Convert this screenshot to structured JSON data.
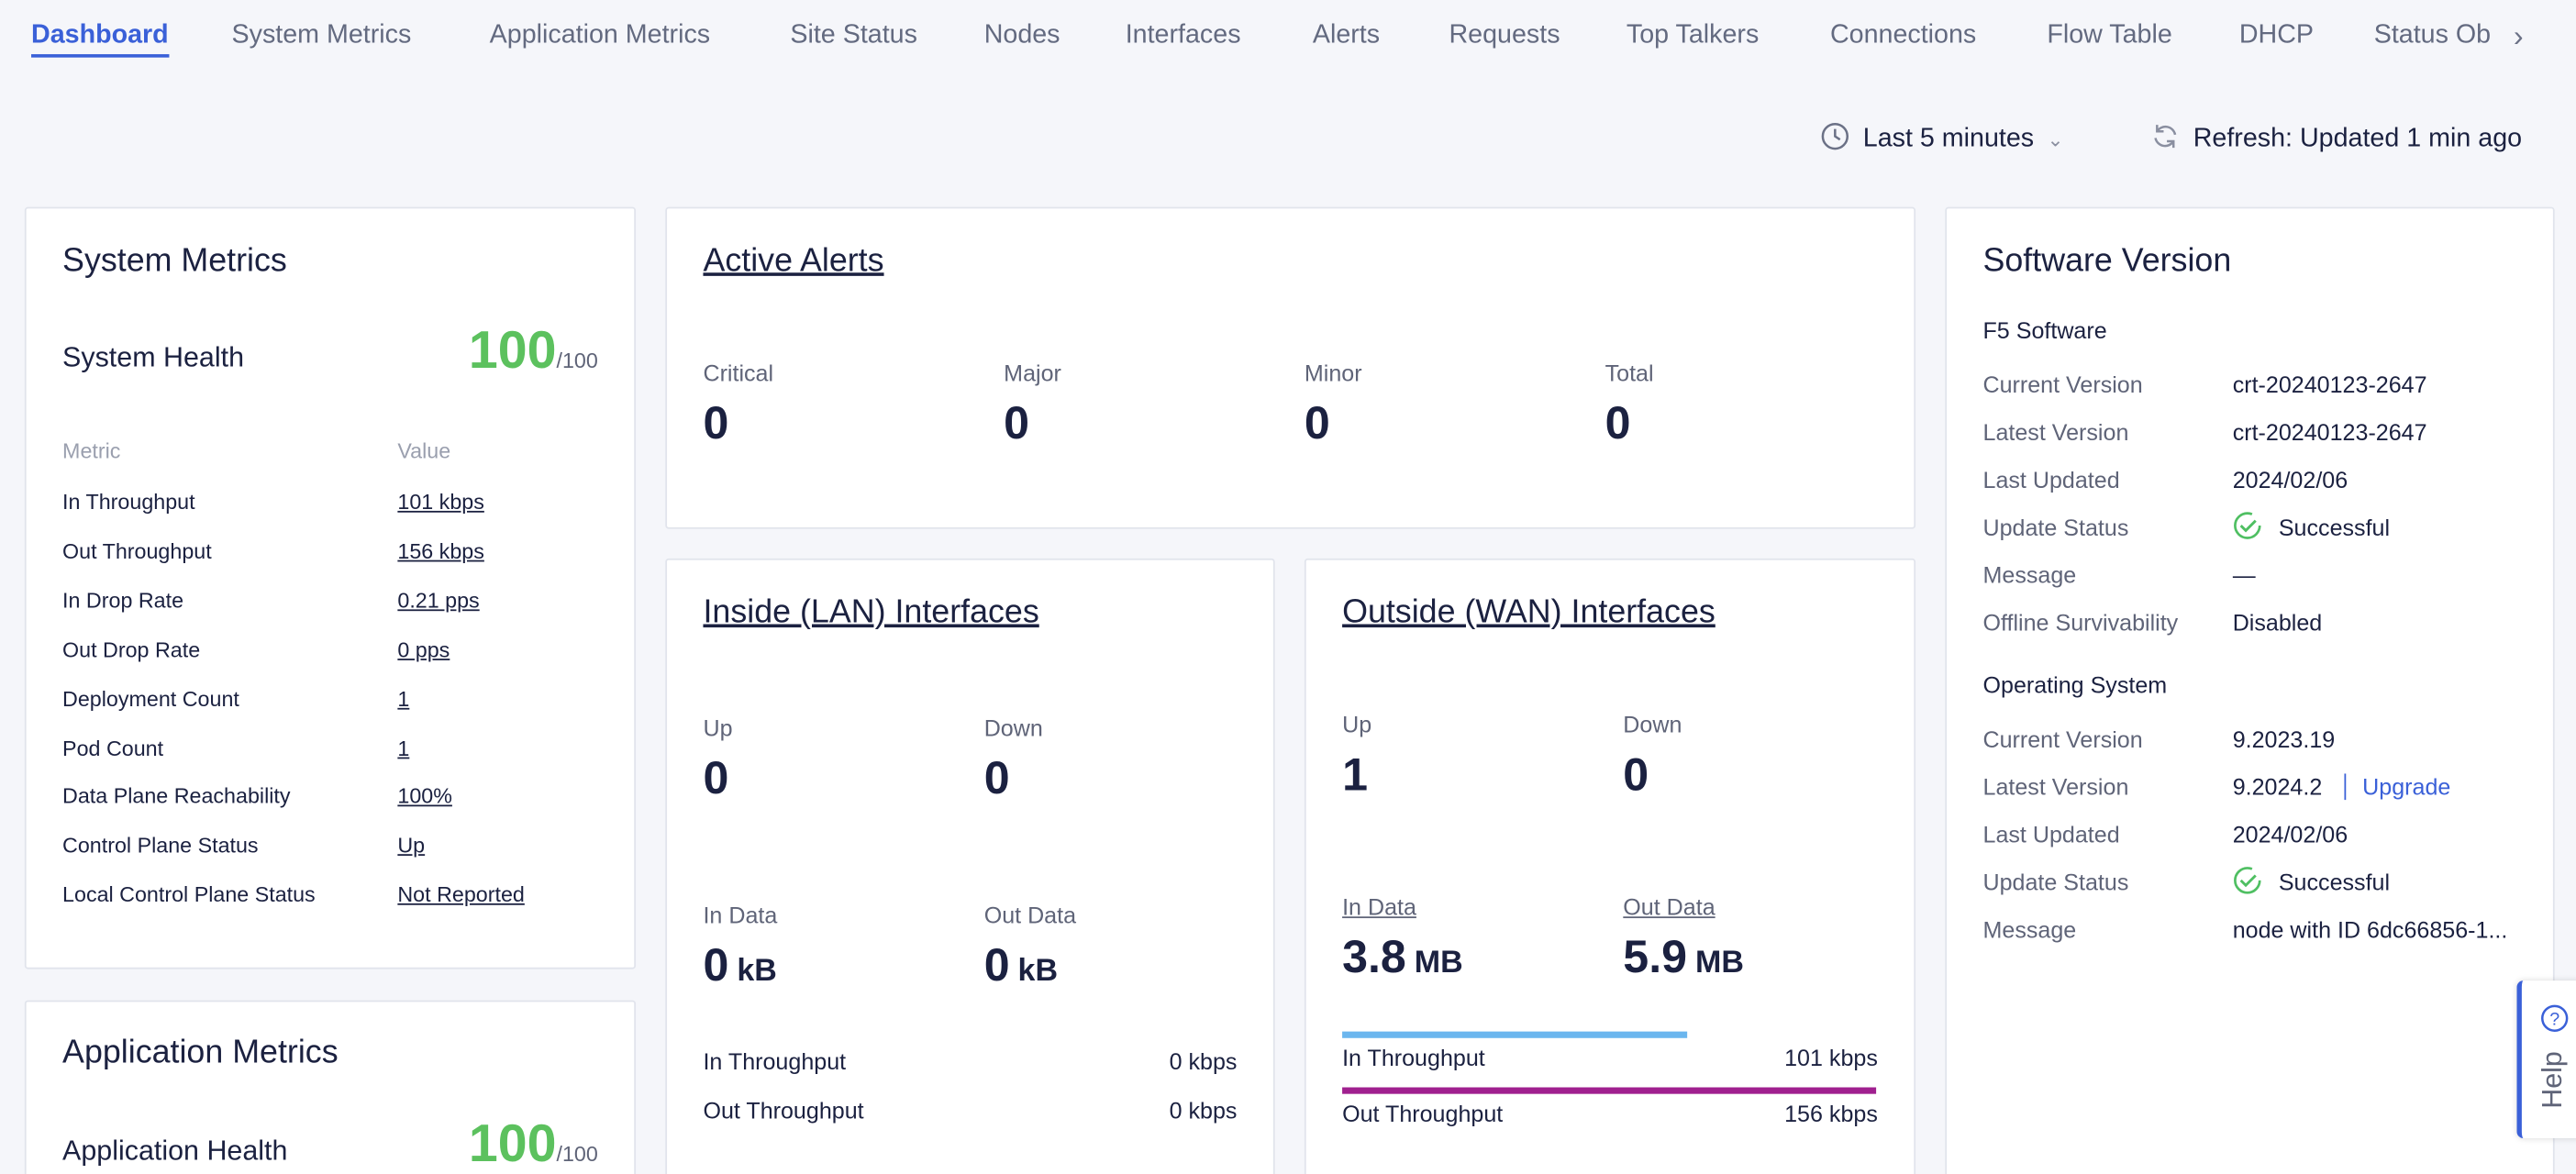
{
  "tabs": {
    "items": [
      "Dashboard",
      "System Metrics",
      "Application Metrics",
      "Site Status",
      "Nodes",
      "Interfaces",
      "Alerts",
      "Requests",
      "Top Talkers",
      "Connections",
      "Flow Table",
      "DHCP",
      "Status Ob"
    ],
    "active": "Dashboard"
  },
  "toolbar": {
    "time_range": "Last 5 minutes",
    "refresh": "Refresh: Updated 1 min ago"
  },
  "system_metrics": {
    "title": "System Metrics",
    "health_label": "System Health",
    "health_score": "100",
    "health_max": "/100",
    "columns": [
      "Metric",
      "Value"
    ],
    "rows": [
      [
        "In Throughput",
        "101 kbps"
      ],
      [
        "Out Throughput",
        "156 kbps"
      ],
      [
        "In Drop Rate",
        "0.21 pps"
      ],
      [
        "Out Drop Rate",
        "0 pps"
      ],
      [
        "Deployment Count",
        "1"
      ],
      [
        "Pod Count",
        "1"
      ],
      [
        "Data Plane Reachability",
        "100%"
      ],
      [
        "Control Plane Status",
        "Up"
      ],
      [
        "Local Control Plane Status",
        "Not Reported"
      ]
    ]
  },
  "application_metrics": {
    "title": "Application Metrics",
    "health_label": "Application Health",
    "health_score": "100",
    "health_max": "/100"
  },
  "active_alerts": {
    "title": "Active Alerts",
    "stats": [
      {
        "label": "Critical",
        "value": "0"
      },
      {
        "label": "Major",
        "value": "0"
      },
      {
        "label": "Minor",
        "value": "0"
      },
      {
        "label": "Total",
        "value": "0"
      }
    ]
  },
  "lan": {
    "title": "Inside (LAN) Interfaces",
    "stats": [
      {
        "label": "Up",
        "value": "0"
      },
      {
        "label": "Down",
        "value": "0"
      }
    ],
    "data": [
      {
        "label": "In Data",
        "value": "0",
        "unit": "kB"
      },
      {
        "label": "Out Data",
        "value": "0",
        "unit": "kB"
      }
    ],
    "throughput": [
      {
        "label": "In Throughput",
        "value": "0 kbps"
      },
      {
        "label": "Out Throughput",
        "value": "0 kbps"
      }
    ]
  },
  "wan": {
    "title": "Outside (WAN) Interfaces",
    "stats": [
      {
        "label": "Up",
        "value": "1"
      },
      {
        "label": "Down",
        "value": "0"
      }
    ],
    "data": [
      {
        "label": "In Data",
        "value": "3.8",
        "unit": "MB"
      },
      {
        "label": "Out Data",
        "value": "5.9",
        "unit": "MB"
      }
    ],
    "throughput": [
      {
        "label": "In Throughput",
        "value": "101 kbps"
      },
      {
        "label": "Out Throughput",
        "value": "156 kbps"
      }
    ]
  },
  "software": {
    "title": "Software Version",
    "upgrade": "Upgrade",
    "sections": [
      {
        "title": "F5 Software",
        "rows": [
          {
            "label": "Current Version",
            "value": "crt-20240123-2647"
          },
          {
            "label": "Latest Version",
            "value": "crt-20240123-2647"
          },
          {
            "label": "Last Updated",
            "value": "2024/02/06"
          },
          {
            "label": "Update Status",
            "value": "Successful"
          },
          {
            "label": "Message",
            "value": "—"
          },
          {
            "label": "Offline Survivability",
            "value": "Disabled"
          }
        ]
      },
      {
        "title": "Operating System",
        "rows": [
          {
            "label": "Current Version",
            "value": "9.2023.19"
          },
          {
            "label": "Latest Version",
            "value": "9.2024.2"
          },
          {
            "label": "Last Updated",
            "value": "2024/02/06"
          },
          {
            "label": "Update Status",
            "value": "Successful"
          },
          {
            "label": "Message",
            "value": "node with ID 6dc66856-1..."
          }
        ]
      }
    ]
  },
  "help": "Help"
}
